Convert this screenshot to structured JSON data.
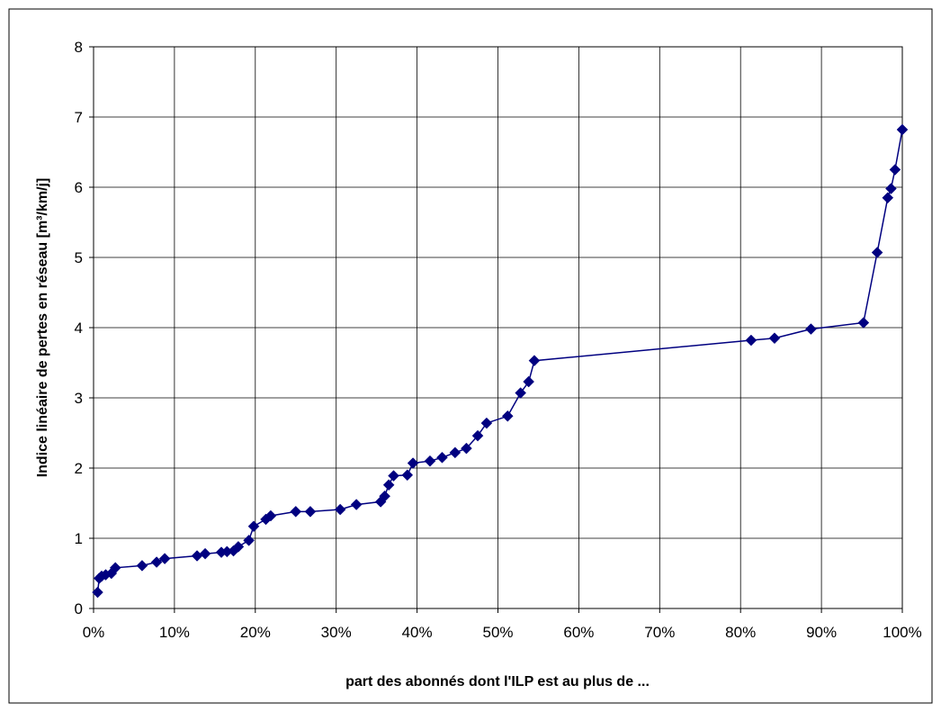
{
  "chart_data": {
    "type": "scatter",
    "title": "",
    "xlabel": "part des abonnés dont l'ILP est au plus de ...",
    "ylabel": "Indice linéaire de pertes en réseau [m³/km/j]",
    "xlim": [
      0,
      100
    ],
    "ylim": [
      0,
      8
    ],
    "grid": true,
    "x_tick_labels": [
      "0%",
      "10%",
      "20%",
      "30%",
      "40%",
      "50%",
      "60%",
      "70%",
      "80%",
      "90%",
      "100%"
    ],
    "y_tick_labels": [
      "0",
      "1",
      "2",
      "3",
      "4",
      "5",
      "6",
      "7",
      "8"
    ],
    "series": [
      {
        "color": "#000080",
        "marker": "diamond",
        "line": true,
        "points": [
          {
            "x": 0.5,
            "y": 0.23
          },
          {
            "x": 0.7,
            "y": 0.43
          },
          {
            "x": 1.0,
            "y": 0.46
          },
          {
            "x": 1.5,
            "y": 0.48
          },
          {
            "x": 2.2,
            "y": 0.5
          },
          {
            "x": 2.7,
            "y": 0.58
          },
          {
            "x": 6.0,
            "y": 0.61
          },
          {
            "x": 7.8,
            "y": 0.66
          },
          {
            "x": 8.8,
            "y": 0.71
          },
          {
            "x": 12.8,
            "y": 0.75
          },
          {
            "x": 13.8,
            "y": 0.78
          },
          {
            "x": 15.8,
            "y": 0.8
          },
          {
            "x": 16.5,
            "y": 0.81
          },
          {
            "x": 17.3,
            "y": 0.82
          },
          {
            "x": 17.9,
            "y": 0.88
          },
          {
            "x": 19.2,
            "y": 0.97
          },
          {
            "x": 19.8,
            "y": 1.17
          },
          {
            "x": 21.3,
            "y": 1.27
          },
          {
            "x": 21.9,
            "y": 1.32
          },
          {
            "x": 25.0,
            "y": 1.38
          },
          {
            "x": 26.8,
            "y": 1.38
          },
          {
            "x": 30.5,
            "y": 1.41
          },
          {
            "x": 32.5,
            "y": 1.48
          },
          {
            "x": 35.5,
            "y": 1.52
          },
          {
            "x": 36.0,
            "y": 1.6
          },
          {
            "x": 36.5,
            "y": 1.76
          },
          {
            "x": 37.1,
            "y": 1.89
          },
          {
            "x": 38.8,
            "y": 1.9
          },
          {
            "x": 39.5,
            "y": 2.07
          },
          {
            "x": 41.6,
            "y": 2.1
          },
          {
            "x": 43.1,
            "y": 2.15
          },
          {
            "x": 44.7,
            "y": 2.22
          },
          {
            "x": 46.1,
            "y": 2.28
          },
          {
            "x": 47.5,
            "y": 2.46
          },
          {
            "x": 48.6,
            "y": 2.64
          },
          {
            "x": 51.2,
            "y": 2.74
          },
          {
            "x": 52.8,
            "y": 3.07
          },
          {
            "x": 53.8,
            "y": 3.23
          },
          {
            "x": 54.5,
            "y": 3.53
          },
          {
            "x": 81.3,
            "y": 3.82
          },
          {
            "x": 84.2,
            "y": 3.85
          },
          {
            "x": 88.7,
            "y": 3.98
          },
          {
            "x": 95.2,
            "y": 4.07
          },
          {
            "x": 96.9,
            "y": 5.07
          },
          {
            "x": 98.2,
            "y": 5.85
          },
          {
            "x": 98.6,
            "y": 5.98
          },
          {
            "x": 99.1,
            "y": 6.25
          },
          {
            "x": 100.0,
            "y": 6.82
          }
        ]
      }
    ]
  },
  "colors": {
    "series": "#000080",
    "grid": "#000000",
    "frame": "#000000",
    "background": "#ffffff"
  }
}
